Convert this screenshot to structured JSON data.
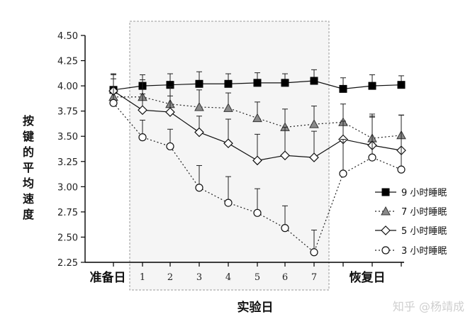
{
  "watermark": "知乎 @杨靖成",
  "chart_data": {
    "type": "line",
    "ylabel": "按键的平均速度",
    "xlabel": "实验日",
    "ylim": [
      2.25,
      4.5
    ],
    "yticks": [
      "2.25",
      "2.50",
      "2.75",
      "3.00",
      "3.25",
      "3.50",
      "3.75",
      "4.00",
      "4.25",
      "4.50"
    ],
    "baseline_label": "准备日",
    "recovery_label": "恢复日",
    "categories": [
      "准备日",
      "1",
      "2",
      "3",
      "4",
      "5",
      "6",
      "7",
      "恢复日1",
      "恢复日2",
      "恢复日3"
    ],
    "x_tick_labels": [
      "1",
      "2",
      "3",
      "4",
      "5",
      "6",
      "7"
    ],
    "shaded_region": "实验日 1–7",
    "legend_position": "right",
    "series": [
      {
        "name": "9 小时睡眠",
        "marker": "square-filled",
        "line": "solid",
        "values": [
          3.96,
          4.0,
          4.01,
          4.02,
          4.02,
          4.03,
          4.03,
          4.05,
          3.97,
          4.0,
          4.01
        ],
        "errors": [
          0.16,
          0.11,
          0.11,
          0.12,
          0.1,
          0.1,
          0.09,
          0.11,
          0.11,
          0.11,
          0.09
        ]
      },
      {
        "name": "7 小时睡眠",
        "marker": "triangle-gray",
        "line": "dotted",
        "values": [
          3.89,
          3.89,
          3.82,
          3.79,
          3.78,
          3.68,
          3.59,
          3.62,
          3.64,
          3.48,
          3.51
        ],
        "errors": [
          0.18,
          0.17,
          0.17,
          0.17,
          0.15,
          0.16,
          0.18,
          0.18,
          0.18,
          0.22,
          0.2
        ]
      },
      {
        "name": "5 小时睡眠",
        "marker": "diamond-open",
        "line": "solid",
        "values": [
          3.95,
          3.76,
          3.74,
          3.54,
          3.43,
          3.26,
          3.31,
          3.29,
          3.47,
          3.41,
          3.36
        ],
        "errors": [
          0.17,
          0.16,
          0.16,
          0.16,
          0.24,
          0.26,
          0.28,
          0.26,
          0.18,
          0.31,
          0.35
        ]
      },
      {
        "name": "3 小时睡眠",
        "marker": "circle-open",
        "line": "dotted",
        "values": [
          3.83,
          3.49,
          3.4,
          2.99,
          2.84,
          2.74,
          2.59,
          2.35,
          3.13,
          3.29,
          3.17
        ],
        "errors": [
          0.28,
          0.17,
          0.17,
          0.22,
          0.26,
          0.24,
          0.22,
          0.22,
          0.34,
          0.4,
          0.54
        ]
      }
    ]
  }
}
